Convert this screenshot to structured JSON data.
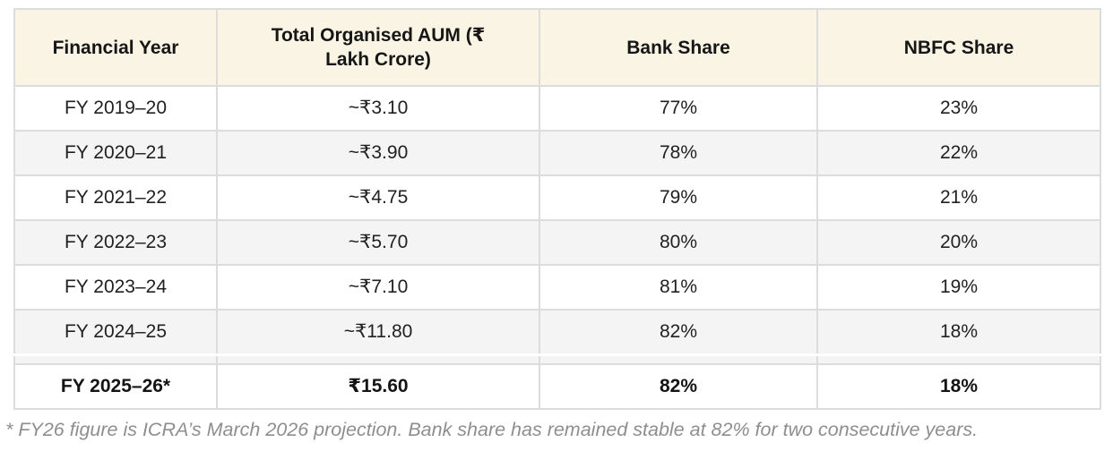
{
  "colors": {
    "header_bg": "#faf4e4",
    "zebra_bg": "#f4f4f4",
    "border_color": "#dcdcdc",
    "footnote_color": "#8e8e8e"
  },
  "table": {
    "headers": [
      "Financial Year",
      "Total Organised AUM (₹ Lakh Crore)",
      "Bank Share",
      "NBFC Share"
    ],
    "rows": [
      {
        "year": "FY 2019–20",
        "aum": "~₹3.10",
        "bank_share": "77%",
        "nbfc_share": "23%",
        "projection": false
      },
      {
        "year": "FY 2020–21",
        "aum": "~₹3.90",
        "bank_share": "78%",
        "nbfc_share": "22%",
        "projection": false
      },
      {
        "year": "FY 2021–22",
        "aum": "~₹4.75",
        "bank_share": "79%",
        "nbfc_share": "21%",
        "projection": false
      },
      {
        "year": "FY 2022–23",
        "aum": "~₹5.70",
        "bank_share": "80%",
        "nbfc_share": "20%",
        "projection": false
      },
      {
        "year": "FY 2023–24",
        "aum": "~₹7.10",
        "bank_share": "81%",
        "nbfc_share": "19%",
        "projection": false
      },
      {
        "year": "FY 2024–25",
        "aum": "~₹11.80",
        "bank_share": "82%",
        "nbfc_share": "18%",
        "projection": false
      },
      {
        "year": "FY 2025–26*",
        "aum": "₹15.60",
        "bank_share": "82%",
        "nbfc_share": "18%",
        "projection": true
      }
    ]
  },
  "footnote": "* FY26 figure is ICRA’s March 2026 projection. Bank share has remained stable at 82% for two consecutive years.",
  "chart_data": {
    "type": "table",
    "title": "",
    "columns": [
      "Financial Year",
      "Total Organised AUM (₹ Lakh Crore)",
      "Bank Share",
      "NBFC Share"
    ],
    "rows": [
      [
        "FY 2019–20",
        "~₹3.10",
        "77%",
        "23%"
      ],
      [
        "FY 2020–21",
        "~₹3.90",
        "78%",
        "22%"
      ],
      [
        "FY 2021–22",
        "~₹4.75",
        "79%",
        "21%"
      ],
      [
        "FY 2022–23",
        "~₹5.70",
        "80%",
        "20%"
      ],
      [
        "FY 2023–24",
        "~₹7.10",
        "81%",
        "19%"
      ],
      [
        "FY 2024–25",
        "~₹11.80",
        "82%",
        "18%"
      ],
      [
        "FY 2025–26*",
        "₹15.60",
        "82%",
        "18%"
      ]
    ],
    "series": [
      {
        "name": "Total Organised AUM (₹ Lakh Crore)",
        "values": [
          3.1,
          3.9,
          4.75,
          5.7,
          7.1,
          11.8,
          15.6
        ]
      },
      {
        "name": "Bank Share (%)",
        "values": [
          77,
          78,
          79,
          80,
          81,
          82,
          82
        ]
      },
      {
        "name": "NBFC Share (%)",
        "values": [
          23,
          22,
          21,
          20,
          19,
          18,
          18
        ]
      }
    ],
    "categories": [
      "FY 2019–20",
      "FY 2020–21",
      "FY 2021–22",
      "FY 2022–23",
      "FY 2023–24",
      "FY 2024–25",
      "FY 2025–26*"
    ],
    "footnote": "* FY26 figure is ICRA’s March 2026 projection. Bank share has remained stable at 82% for two consecutive years."
  }
}
